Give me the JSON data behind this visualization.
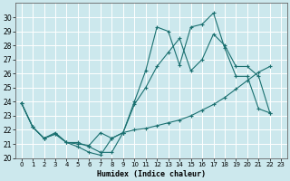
{
  "xlabel": "Humidex (Indice chaleur)",
  "xlim": [
    -0.5,
    23.5
  ],
  "ylim": [
    20,
    31
  ],
  "yticks": [
    20,
    21,
    22,
    23,
    24,
    25,
    26,
    27,
    28,
    29,
    30
  ],
  "xticks": [
    0,
    1,
    2,
    3,
    4,
    5,
    6,
    7,
    8,
    9,
    10,
    11,
    12,
    13,
    14,
    15,
    16,
    17,
    18,
    19,
    20,
    21,
    22,
    23
  ],
  "bg_color": "#cce8ed",
  "line_color": "#1a7070",
  "grid_color": "#ffffff",
  "series": [
    {
      "x": [
        0,
        1,
        2,
        3,
        4,
        5,
        6,
        7,
        8,
        9,
        10,
        11,
        12,
        13,
        14,
        15,
        16,
        17,
        18,
        19,
        20,
        21,
        22
      ],
      "y": [
        23.9,
        22.2,
        21.4,
        21.7,
        21.1,
        20.8,
        20.4,
        20.2,
        21.4,
        21.8,
        24.0,
        26.2,
        29.3,
        29.0,
        26.6,
        29.3,
        29.5,
        30.3,
        27.8,
        25.8,
        25.8,
        23.5,
        23.2
      ]
    },
    {
      "x": [
        0,
        1,
        2,
        3,
        4,
        5,
        6,
        7,
        8,
        9,
        10,
        11,
        12,
        13,
        14,
        15,
        16,
        17,
        18,
        19,
        20,
        21,
        22
      ],
      "y": [
        23.9,
        22.2,
        21.4,
        21.7,
        21.1,
        21.1,
        20.8,
        20.4,
        20.4,
        21.8,
        22.0,
        22.1,
        22.3,
        22.5,
        22.7,
        23.0,
        23.4,
        23.8,
        24.3,
        24.9,
        25.5,
        26.1,
        26.5
      ]
    },
    {
      "x": [
        0,
        1,
        2,
        3,
        4,
        5,
        6,
        7,
        8,
        9,
        10,
        11,
        12,
        13,
        14,
        15,
        16,
        17,
        18,
        19,
        20,
        21,
        22
      ],
      "y": [
        23.9,
        22.2,
        21.4,
        21.8,
        21.1,
        21.0,
        20.9,
        21.8,
        21.4,
        21.8,
        23.8,
        25.0,
        26.5,
        27.5,
        28.5,
        26.2,
        27.0,
        28.8,
        28.0,
        26.5,
        26.5,
        25.8,
        23.2
      ]
    }
  ]
}
